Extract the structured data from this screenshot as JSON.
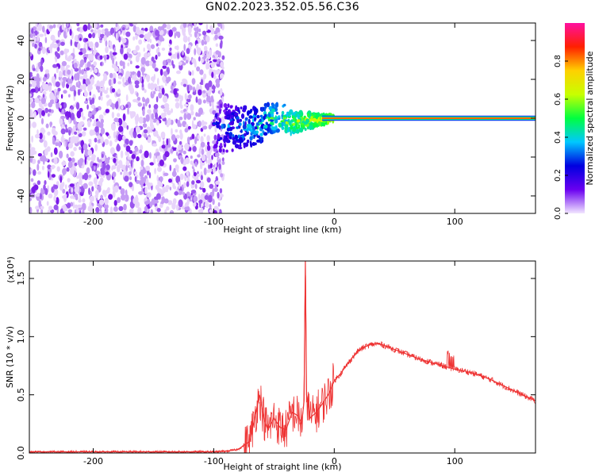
{
  "title": "GN02.2023.352.05.56.C36",
  "chart_data": [
    {
      "type": "heatmap",
      "title": "GN02.2023.352.05.56.C36",
      "xlabel": "Height of straight line (km)",
      "ylabel": "Frequency (Hz)",
      "xlim": [
        -253,
        167
      ],
      "ylim": [
        -49,
        49
      ],
      "xticks": [
        -200,
        -100,
        0,
        100
      ],
      "yticks": [
        -40,
        -20,
        0,
        20,
        40
      ],
      "colorbar": {
        "label": "Normalized spectral amplitude",
        "range": [
          0.0,
          1.0
        ],
        "ticks": [
          "0.0",
          "0.2",
          "0.4",
          "0.6",
          "0.8"
        ],
        "colors": [
          "#f2e6ff",
          "#6a00f0",
          "#0000e0",
          "#00c8ff",
          "#00ff40",
          "#c8ff00",
          "#ffd000",
          "#ff2000",
          "#ff10a0"
        ]
      },
      "regions": [
        {
          "x_range": [
            -253,
            -100
          ],
          "f_range": [
            -49,
            49
          ],
          "amplitude_range": [
            0.0,
            0.08
          ],
          "pattern": "broadband noise"
        },
        {
          "x_range": [
            -100,
            0
          ],
          "f_range": [
            -10,
            10
          ],
          "amplitude_range": [
            0.0,
            0.6
          ],
          "pattern": "converging energy"
        },
        {
          "x_range": [
            0,
            167
          ],
          "f_range": [
            -1,
            1
          ],
          "amplitude_range": [
            0.6,
            1.0
          ],
          "pattern": "narrow band at 0 Hz"
        }
      ]
    },
    {
      "type": "line",
      "xlabel": "Height of straight line (km)",
      "ylabel": "SNR (10 * v/v)",
      "y_multiplier": "(x10⁴)",
      "xlim": [
        -253,
        167
      ],
      "ylim": [
        0.0,
        1.65
      ],
      "xticks": [
        -200,
        -100,
        0,
        100
      ],
      "yticks": [
        "0.0",
        "0.5",
        "1.0",
        "1.5"
      ],
      "line_color": "#ee3333",
      "series": [
        {
          "x": [
            -253,
            -200,
            -150,
            -100,
            -90,
            -80,
            -70,
            -65,
            -62,
            -58,
            -55,
            -50,
            -45,
            -40,
            -35,
            -30,
            -27,
            -25,
            -24,
            -23,
            -20,
            -15,
            -10,
            -5,
            0,
            5,
            10,
            15,
            20,
            25,
            30,
            35,
            40,
            50,
            60,
            70,
            80,
            90,
            100,
            110,
            120,
            130,
            140,
            150,
            160,
            167
          ],
          "y": [
            0.01,
            0.01,
            0.01,
            0.01,
            0.015,
            0.03,
            0.1,
            0.35,
            0.5,
            0.28,
            0.2,
            0.3,
            0.22,
            0.2,
            0.35,
            0.32,
            0.25,
            0.45,
            1.65,
            0.5,
            0.3,
            0.35,
            0.42,
            0.5,
            0.62,
            0.68,
            0.75,
            0.82,
            0.88,
            0.91,
            0.93,
            0.94,
            0.93,
            0.89,
            0.85,
            0.81,
            0.78,
            0.75,
            0.72,
            0.7,
            0.67,
            0.63,
            0.58,
            0.53,
            0.48,
            0.45
          ]
        }
      ]
    }
  ]
}
